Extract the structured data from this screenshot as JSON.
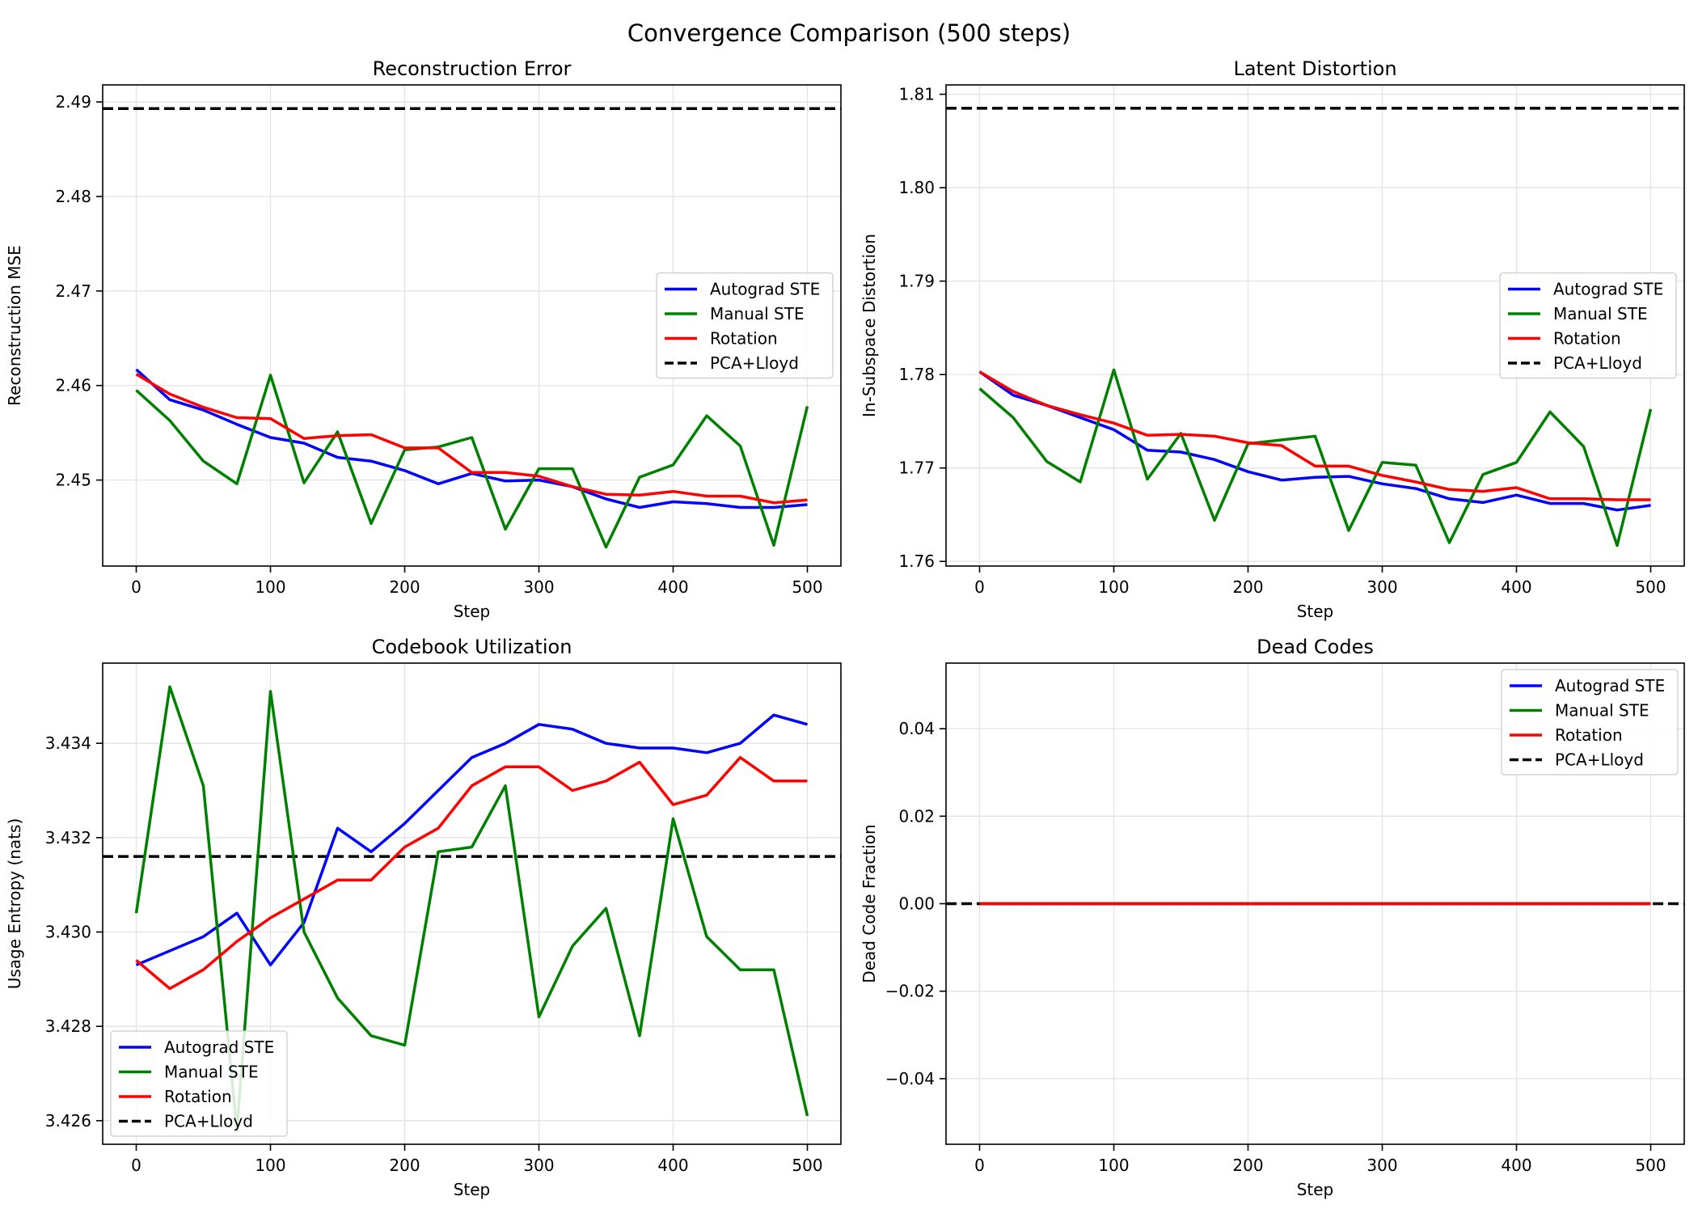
{
  "figure": {
    "title": "Convergence Comparison (500 steps)"
  },
  "colors": {
    "autograd": "#0000ff",
    "manual": "#008000",
    "rotation": "#ff0000",
    "baseline": "#000000",
    "grid": "#e3e3e3"
  },
  "chart_data": [
    {
      "type": "line",
      "title": "Reconstruction Error",
      "xlabel": "Step",
      "ylabel": "Reconstruction MSE",
      "xlim": [
        -25,
        525
      ],
      "ylim": [
        2.4409,
        2.4918
      ],
      "xticks": [
        0,
        100,
        200,
        300,
        400,
        500
      ],
      "yticks": [
        2.45,
        2.46,
        2.47,
        2.48,
        2.49
      ],
      "ytick_labels": [
        "2.45",
        "2.46",
        "2.47",
        "2.48",
        "2.49"
      ],
      "grid": true,
      "legend": "center-right",
      "x": [
        0,
        25,
        50,
        75,
        100,
        125,
        150,
        175,
        200,
        225,
        250,
        275,
        300,
        325,
        350,
        375,
        400,
        425,
        450,
        475,
        500
      ],
      "series": [
        {
          "name": "Autograd STE",
          "color_key": "autograd",
          "values": [
            2.4617,
            2.4585,
            2.4574,
            2.4559,
            2.4545,
            2.4539,
            2.4524,
            2.452,
            2.451,
            2.4496,
            2.4507,
            2.4499,
            2.45,
            2.4493,
            2.448,
            2.4471,
            2.4477,
            2.4475,
            2.4471,
            2.4471,
            2.4474
          ]
        },
        {
          "name": "Manual STE",
          "color_key": "manual",
          "values": [
            2.4595,
            2.4563,
            2.452,
            2.4496,
            2.4611,
            2.4497,
            2.4551,
            2.4454,
            2.4532,
            2.4535,
            2.4545,
            2.4448,
            2.4512,
            2.4512,
            2.4429,
            2.4503,
            2.4516,
            2.4568,
            2.4536,
            2.4431,
            2.4578
          ]
        },
        {
          "name": "Rotation",
          "color_key": "rotation",
          "values": [
            2.4612,
            2.4591,
            2.4577,
            2.4566,
            2.4565,
            2.4544,
            2.4547,
            2.4548,
            2.4534,
            2.4534,
            2.4508,
            2.4508,
            2.4504,
            2.4493,
            2.4485,
            2.4484,
            2.4488,
            2.4483,
            2.4483,
            2.4476,
            2.4479
          ]
        }
      ],
      "baseline": {
        "name": "PCA+Lloyd",
        "color_key": "baseline",
        "value": 2.4893
      }
    },
    {
      "type": "line",
      "title": "Latent Distortion",
      "xlabel": "Step",
      "ylabel": "In-Subspace Distortion",
      "xlim": [
        -25,
        525
      ],
      "ylim": [
        1.7595,
        1.811
      ],
      "xticks": [
        0,
        100,
        200,
        300,
        400,
        500
      ],
      "yticks": [
        1.76,
        1.77,
        1.78,
        1.79,
        1.8,
        1.81
      ],
      "ytick_labels": [
        "1.76",
        "1.77",
        "1.78",
        "1.79",
        "1.80",
        "1.81"
      ],
      "grid": true,
      "legend": "center-right",
      "x": [
        0,
        25,
        50,
        75,
        100,
        125,
        150,
        175,
        200,
        225,
        250,
        275,
        300,
        325,
        350,
        375,
        400,
        425,
        450,
        475,
        500
      ],
      "series": [
        {
          "name": "Autograd STE",
          "color_key": "autograd",
          "values": [
            1.7803,
            1.7778,
            1.7767,
            1.7754,
            1.7741,
            1.7719,
            1.7717,
            1.7709,
            1.7696,
            1.7687,
            1.769,
            1.7691,
            1.7683,
            1.7678,
            1.7667,
            1.7663,
            1.7671,
            1.7662,
            1.7662,
            1.7655,
            1.766
          ]
        },
        {
          "name": "Manual STE",
          "color_key": "manual",
          "values": [
            1.7785,
            1.7754,
            1.7707,
            1.7685,
            1.7805,
            1.7688,
            1.7737,
            1.7644,
            1.7726,
            1.773,
            1.7734,
            1.7633,
            1.7706,
            1.7703,
            1.762,
            1.7693,
            1.7706,
            1.776,
            1.7723,
            1.7617,
            1.7763
          ]
        },
        {
          "name": "Rotation",
          "color_key": "rotation",
          "values": [
            1.7803,
            1.7782,
            1.7767,
            1.7757,
            1.7748,
            1.7735,
            1.7736,
            1.7734,
            1.7727,
            1.7724,
            1.7702,
            1.7702,
            1.7692,
            1.7685,
            1.7677,
            1.7675,
            1.7679,
            1.7667,
            1.7667,
            1.7666,
            1.7666
          ]
        }
      ],
      "baseline": {
        "name": "PCA+Lloyd",
        "color_key": "baseline",
        "value": 1.8085
      }
    },
    {
      "type": "line",
      "title": "Codebook Utilization",
      "xlabel": "Step",
      "ylabel": "Usage Entropy (nats)",
      "xlim": [
        -25,
        525
      ],
      "ylim": [
        3.4255,
        3.4357
      ],
      "xticks": [
        0,
        100,
        200,
        300,
        400,
        500
      ],
      "yticks": [
        3.426,
        3.428,
        3.43,
        3.432,
        3.434
      ],
      "ytick_labels": [
        "3.426",
        "3.428",
        "3.430",
        "3.432",
        "3.434"
      ],
      "grid": true,
      "legend": "lower-left",
      "x": [
        0,
        25,
        50,
        75,
        100,
        125,
        150,
        175,
        200,
        225,
        250,
        275,
        300,
        325,
        350,
        375,
        400,
        425,
        450,
        475,
        500
      ],
      "series": [
        {
          "name": "Autograd STE",
          "color_key": "autograd",
          "values": [
            3.4293,
            3.4296,
            3.4299,
            3.4304,
            3.4293,
            3.4302,
            3.4322,
            3.4317,
            3.4323,
            3.433,
            3.4337,
            3.434,
            3.4344,
            3.4343,
            3.434,
            3.4339,
            3.4339,
            3.4338,
            3.434,
            3.4346,
            3.4344
          ]
        },
        {
          "name": "Manual STE",
          "color_key": "manual",
          "values": [
            3.4304,
            3.4352,
            3.4331,
            3.4258,
            3.4351,
            3.43,
            3.4286,
            3.4278,
            3.4276,
            3.4317,
            3.4318,
            3.4331,
            3.4282,
            3.4297,
            3.4305,
            3.4278,
            3.4324,
            3.4299,
            3.4292,
            3.4292,
            3.4261
          ]
        },
        {
          "name": "Rotation",
          "color_key": "rotation",
          "values": [
            3.4294,
            3.4288,
            3.4292,
            3.4298,
            3.4303,
            3.4307,
            3.4311,
            3.4311,
            3.4318,
            3.4322,
            3.4331,
            3.4335,
            3.4335,
            3.433,
            3.4332,
            3.4336,
            3.4327,
            3.4329,
            3.4337,
            3.4332,
            3.4332
          ]
        }
      ],
      "baseline": {
        "name": "PCA+Lloyd",
        "color_key": "baseline",
        "value": 3.4316
      }
    },
    {
      "type": "line",
      "title": "Dead Codes",
      "xlabel": "Step",
      "ylabel": "Dead Code Fraction",
      "xlim": [
        -25,
        525
      ],
      "ylim": [
        -0.055,
        0.055
      ],
      "xticks": [
        0,
        100,
        200,
        300,
        400,
        500
      ],
      "yticks": [
        -0.04,
        -0.02,
        0.0,
        0.02,
        0.04
      ],
      "ytick_labels": [
        "−0.04",
        "−0.02",
        "0.00",
        "0.02",
        "0.04"
      ],
      "grid": true,
      "legend": "upper-right",
      "x": [
        0,
        25,
        50,
        75,
        100,
        125,
        150,
        175,
        200,
        225,
        250,
        275,
        300,
        325,
        350,
        375,
        400,
        425,
        450,
        475,
        500
      ],
      "series": [
        {
          "name": "Autograd STE",
          "color_key": "autograd",
          "values": [
            0,
            0,
            0,
            0,
            0,
            0,
            0,
            0,
            0,
            0,
            0,
            0,
            0,
            0,
            0,
            0,
            0,
            0,
            0,
            0,
            0
          ]
        },
        {
          "name": "Manual STE",
          "color_key": "manual",
          "values": [
            0,
            0,
            0,
            0,
            0,
            0,
            0,
            0,
            0,
            0,
            0,
            0,
            0,
            0,
            0,
            0,
            0,
            0,
            0,
            0,
            0
          ]
        },
        {
          "name": "Rotation",
          "color_key": "rotation",
          "values": [
            0,
            0,
            0,
            0,
            0,
            0,
            0,
            0,
            0,
            0,
            0,
            0,
            0,
            0,
            0,
            0,
            0,
            0,
            0,
            0,
            0
          ]
        }
      ],
      "baseline": {
        "name": "PCA+Lloyd",
        "color_key": "baseline",
        "value": 0.0
      }
    }
  ]
}
